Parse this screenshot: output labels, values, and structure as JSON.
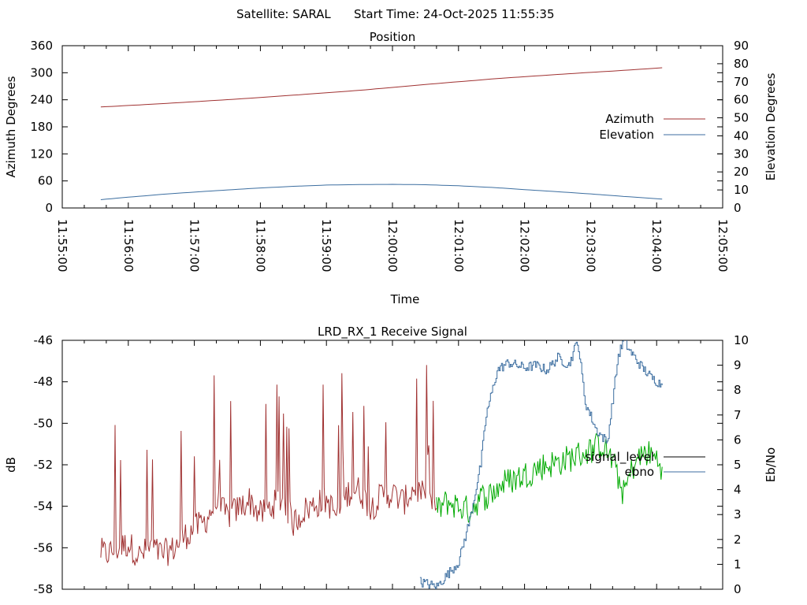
{
  "header": {
    "satellite": "Satellite: SARAL",
    "start_time": "Start Time: 24-Oct-2025 11:55:35"
  },
  "chart_data": [
    {
      "type": "line",
      "title": "Position",
      "xlabel": "Time",
      "ylabel": "Azimuth Degrees",
      "y2label": "Elevation Degrees",
      "x_ticks": [
        "11:55:00",
        "11:56:00",
        "11:57:00",
        "11:58:00",
        "11:59:00",
        "12:00:00",
        "12:01:00",
        "12:02:00",
        "12:03:00",
        "12:04:00",
        "12:05:00"
      ],
      "xlim": [
        "11:55:00",
        "12:05:00"
      ],
      "ylim": [
        0,
        360
      ],
      "y_ticks": [
        0,
        60,
        120,
        180,
        240,
        300,
        360
      ],
      "y2lim": [
        0,
        90
      ],
      "y2_ticks": [
        0,
        10,
        20,
        30,
        40,
        50,
        60,
        70,
        80,
        90
      ],
      "legend": "right",
      "series": [
        {
          "name": "Azimuth",
          "axis": "y1",
          "color": "#a03232",
          "x": [
            "11:55:35",
            "11:56:35",
            "11:57:35",
            "11:58:35",
            "11:59:35",
            "12:00:35",
            "12:01:35",
            "12:02:35",
            "12:03:35",
            "12:04:05"
          ],
          "values": [
            224,
            232,
            241,
            251,
            262,
            275,
            287,
            297,
            306,
            311
          ]
        },
        {
          "name": "Elevation",
          "axis": "y2",
          "color": "#3c6ea0",
          "x": [
            "11:55:35",
            "11:56:00",
            "11:56:30",
            "11:57:00",
            "11:57:30",
            "11:58:00",
            "11:58:30",
            "11:59:00",
            "11:59:30",
            "12:00:00",
            "12:00:30",
            "12:01:00",
            "12:01:30",
            "12:02:00",
            "12:02:30",
            "12:03:00",
            "12:03:30",
            "12:04:05"
          ],
          "values": [
            4.6,
            6.0,
            7.5,
            8.8,
            10.0,
            11.1,
            12.0,
            12.7,
            13.0,
            13.1,
            12.9,
            12.3,
            11.4,
            10.2,
            9.0,
            7.8,
            6.4,
            4.9
          ]
        }
      ]
    },
    {
      "type": "line",
      "title": "LRD_RX_1 Receive Signal",
      "ylabel": "dB",
      "y2label": "Eb/No",
      "ylim": [
        -58,
        -46
      ],
      "y_ticks": [
        -58,
        -56,
        -54,
        -52,
        -50,
        -48,
        -46
      ],
      "y2lim": [
        0,
        10
      ],
      "y2_ticks": [
        0,
        1,
        2,
        3,
        4,
        5,
        6,
        7,
        8,
        9,
        10
      ],
      "xlim": [
        "11:55:00",
        "12:05:00"
      ],
      "legend": "right",
      "series": [
        {
          "name": "signal_level",
          "axis": "y1",
          "legend_color": "#000000",
          "segments": [
            {
              "color": "#a03232",
              "x": [
                "11:55:35",
                "11:55:40",
                "11:56:00",
                "11:56:10",
                "11:56:20",
                "11:56:30",
                "11:56:40",
                "11:56:50",
                "11:57:00",
                "11:57:10",
                "11:57:20",
                "11:57:30",
                "11:57:40",
                "11:57:50",
                "11:58:00",
                "11:58:10",
                "11:58:20",
                "11:58:30",
                "11:58:40",
                "11:58:50",
                "11:59:00",
                "11:59:10",
                "11:59:20",
                "11:59:30",
                "11:59:40",
                "11:59:50",
                "12:00:00",
                "12:00:10",
                "12:00:20",
                "12:00:30",
                "12:00:40"
              ],
              "values": [
                -56.3,
                -56.4,
                -55.9,
                -56.5,
                -56.1,
                -56.4,
                -56.2,
                -55.6,
                -55.2,
                -54.8,
                -53.9,
                -54.6,
                -54.2,
                -53.8,
                -54.5,
                -54.1,
                -53.7,
                -54.9,
                -54.3,
                -54.0,
                -53.8,
                -54.6,
                -53.4,
                -53.3,
                -54.2,
                -53.6,
                -53.5,
                -53.9,
                -53.2,
                -53.7,
                -54.1
              ]
            },
            {
              "color": "#00aa00",
              "x": [
                "12:00:40",
                "12:00:50",
                "12:01:00",
                "12:01:10",
                "12:01:20",
                "12:01:30",
                "12:01:40",
                "12:01:50",
                "12:02:00",
                "12:02:10",
                "12:02:20",
                "12:02:30",
                "12:02:40",
                "12:02:50",
                "12:03:00",
                "12:03:10",
                "12:03:20",
                "12:03:30",
                "12:03:40",
                "12:03:50",
                "12:04:00",
                "12:04:05"
              ],
              "values": [
                -54.2,
                -53.8,
                -54.0,
                -54.2,
                -53.6,
                -53.4,
                -52.9,
                -52.7,
                -52.5,
                -52.2,
                -52.0,
                -51.9,
                -51.7,
                -51.5,
                -51.3,
                -51.0,
                -51.8,
                -53.4,
                -51.9,
                -51.4,
                -51.7,
                -52.1
              ]
            }
          ]
        },
        {
          "name": "ebno",
          "axis": "y2",
          "color": "#3c6ea0",
          "x": [
            "12:00:25",
            "12:00:40",
            "12:00:50",
            "12:01:00",
            "12:01:10",
            "12:01:20",
            "12:01:25",
            "12:01:35",
            "12:01:45",
            "12:02:00",
            "12:02:10",
            "12:02:20",
            "12:02:30",
            "12:02:40",
            "12:02:48",
            "12:02:55",
            "12:03:05",
            "12:03:15",
            "12:03:25",
            "12:03:30",
            "12:03:35",
            "12:03:45",
            "12:03:55",
            "12:04:05"
          ],
          "values": [
            0.3,
            0.1,
            0.6,
            1.1,
            2.8,
            5.0,
            7.0,
            8.8,
            9.1,
            8.9,
            9.0,
            8.8,
            9.3,
            9.0,
            10.0,
            7.5,
            6.4,
            5.9,
            9.4,
            10.0,
            9.6,
            9.0,
            8.5,
            8.2
          ]
        }
      ]
    }
  ]
}
